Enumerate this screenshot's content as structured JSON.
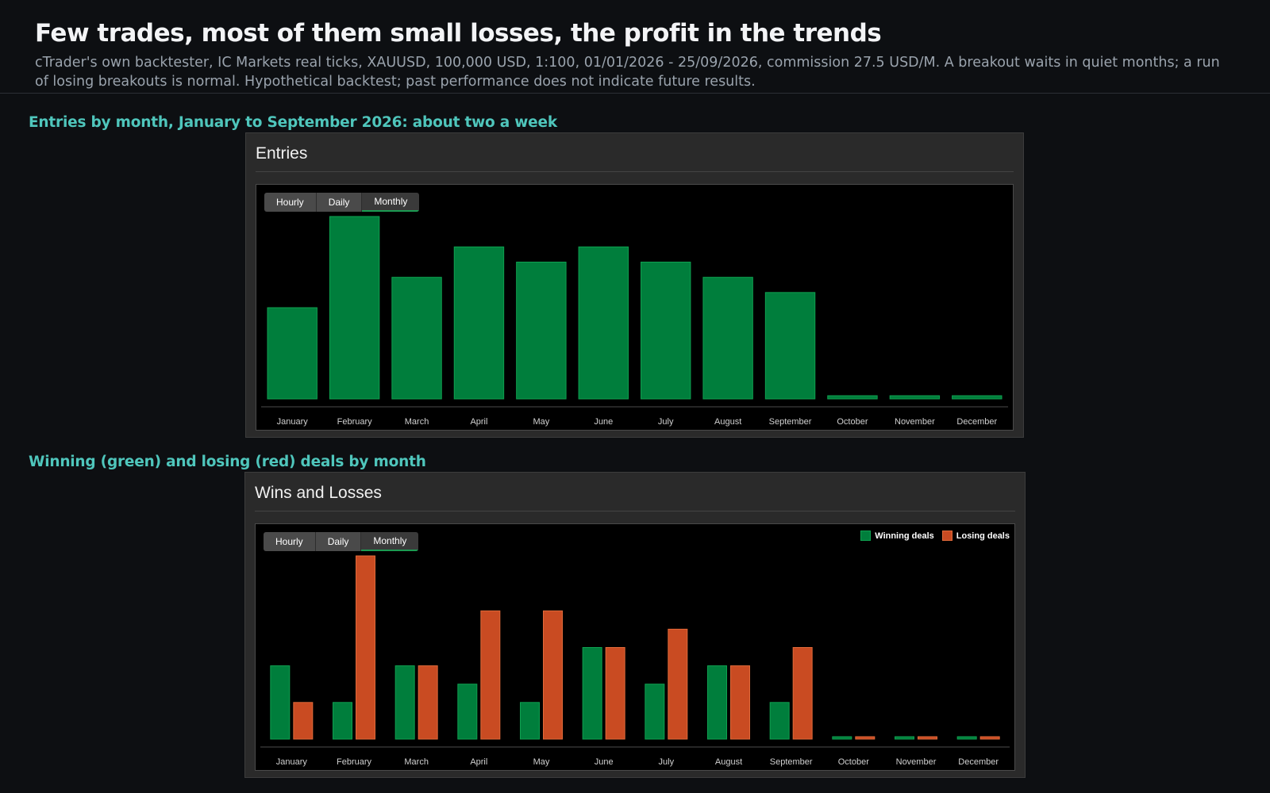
{
  "header": {
    "title": "Few trades, most of them small losses, the profit in the trends",
    "subtitle": "cTrader's own backtester, IC Markets real ticks, XAUUSD, 100,000 USD, 1:100, 01/01/2026 - 25/09/2026, commission 27.5 USD/M. A breakout waits in quiet months; a run of losing breakouts is normal. Hypothetical backtest; past performance does not indicate future results."
  },
  "entries_section": {
    "heading": "Entries by month, January to September 2026: about two a week",
    "panel_title": "Entries",
    "tabs": [
      "Hourly",
      "Daily",
      "Monthly"
    ],
    "active_tab": "Monthly"
  },
  "winloss_section": {
    "heading": "Winning (green) and losing (red) deals by month",
    "panel_title": "Wins and Losses",
    "tabs": [
      "Hourly",
      "Daily",
      "Monthly"
    ],
    "active_tab": "Monthly",
    "legend": [
      "Winning deals",
      "Losing deals"
    ]
  },
  "colors": {
    "winning": "#007e3c",
    "losing": "#c94b22",
    "heading_accent": "#4fc6bc"
  },
  "chart_data": [
    {
      "type": "bar",
      "title": "Entries",
      "categories": [
        "January",
        "February",
        "March",
        "April",
        "May",
        "June",
        "July",
        "August",
        "September",
        "October",
        "November",
        "December"
      ],
      "values": [
        6,
        12,
        8,
        10,
        9,
        10,
        9,
        8,
        7,
        0,
        0,
        0
      ],
      "ylim": [
        0,
        12
      ],
      "grid": false
    },
    {
      "type": "bar",
      "title": "Wins and Losses",
      "categories": [
        "January",
        "February",
        "March",
        "April",
        "May",
        "June",
        "July",
        "August",
        "September",
        "October",
        "November",
        "December"
      ],
      "series": [
        {
          "name": "Winning deals",
          "values": [
            4,
            2,
            4,
            3,
            2,
            5,
            3,
            4,
            2,
            0,
            0,
            0
          ]
        },
        {
          "name": "Losing deals",
          "values": [
            2,
            10,
            4,
            7,
            7,
            5,
            6,
            4,
            5,
            0,
            0,
            0
          ]
        }
      ],
      "ylim": [
        0,
        10
      ],
      "legend": "top-right",
      "grid": false
    }
  ]
}
